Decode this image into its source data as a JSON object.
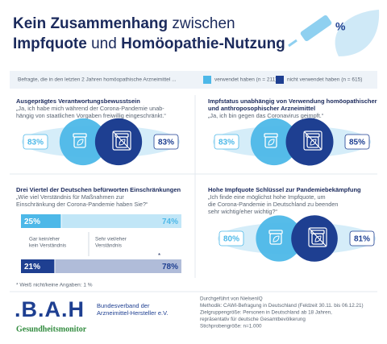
{
  "header": {
    "title_lines": [
      [
        {
          "text": "Kein Zusammenhang",
          "bold": true
        },
        {
          "text": " zwischen",
          "bold": false
        }
      ],
      [
        {
          "text": "Impfquote",
          "bold": true
        },
        {
          "text": " und ",
          "bold": false
        },
        {
          "text": "Homöopathie-Nutzung",
          "bold": true
        }
      ]
    ]
  },
  "legend": {
    "intro": "Befragte, die in den letzten 2 Jahren homöopathische Arzneimittel ...",
    "items": [
      {
        "label": "verwendet haben (n = 211)",
        "color": "#4db8e8"
      },
      {
        "label": "nicht verwendet haben (n = 615)",
        "color": "#1e3f91"
      }
    ]
  },
  "panels": [
    {
      "heading": [
        "Ausgeprägtes Verantwortungsbewusstsein"
      ],
      "quote": [
        "„Ja, ich habe mich während der Corona-Pandemie unab-",
        "hängig von staatlichen Vorgaben freiwillig eingeschränkt.“"
      ],
      "values": [
        83,
        83
      ],
      "value_labels": [
        "83%",
        "83%"
      ]
    },
    {
      "heading": [
        "Impfstatus unabhängig von Verwendung homöopathischer",
        "und anthroposophischer Arzneimittel"
      ],
      "quote": [
        "„Ja, ich bin gegen das Coronavirus geimpft.“"
      ],
      "values": [
        83,
        85
      ],
      "value_labels": [
        "83%",
        "85%"
      ]
    },
    {
      "heading": [
        "Drei Viertel der Deutschen befürworten Einschränkungen"
      ],
      "quote": [
        "„Wie viel Verständnis für Maßnahmen zur",
        "Einschränkung der Corona-Pandemie haben Sie?“"
      ],
      "category_labels": [
        [
          "Gar kein/eher",
          "kein Verständnis"
        ],
        [
          "Sehr viel/eher",
          "Verständnis"
        ]
      ],
      "rows": [
        {
          "values": [
            25,
            74
          ],
          "value_labels": [
            "25%",
            "74%"
          ]
        },
        {
          "values": [
            21,
            78
          ],
          "value_labels": [
            "21%",
            "78%"
          ],
          "marker": "*"
        }
      ]
    },
    {
      "heading": [
        "Hohe Impfquote Schlüssel zur Pandemiebekämpfung"
      ],
      "quote": [
        "„Ich finde eine möglichst hohe Impfquote, um",
        "die Corona-Pandemie in Deutschland zu beenden",
        "sehr wichtig/eher wichtig?“"
      ],
      "values": [
        80,
        81
      ],
      "value_labels": [
        "80%",
        "81%"
      ]
    }
  ],
  "footnote": "* Weiß nicht/keine Angaben: 1 %",
  "logo": {
    "mark": ".B.A.H",
    "name_lines": [
      "Bundesverband der",
      "Arzneimittel-Hersteller e.V."
    ],
    "sub": "Gesundheitsmonitor"
  },
  "method": [
    "Durchgeführt von NielsenIQ",
    "Methodik: CAWI-Befragung in Deutschland (Feldzeit 30.11. bis 06.12.21)",
    "Zielgruppengröße: Personen in Deutschland ab 18 Jahren,",
    "repräsentativ für deutsche Gesamtbevölkerung",
    "Stichprobengröße: n=1.000"
  ]
}
